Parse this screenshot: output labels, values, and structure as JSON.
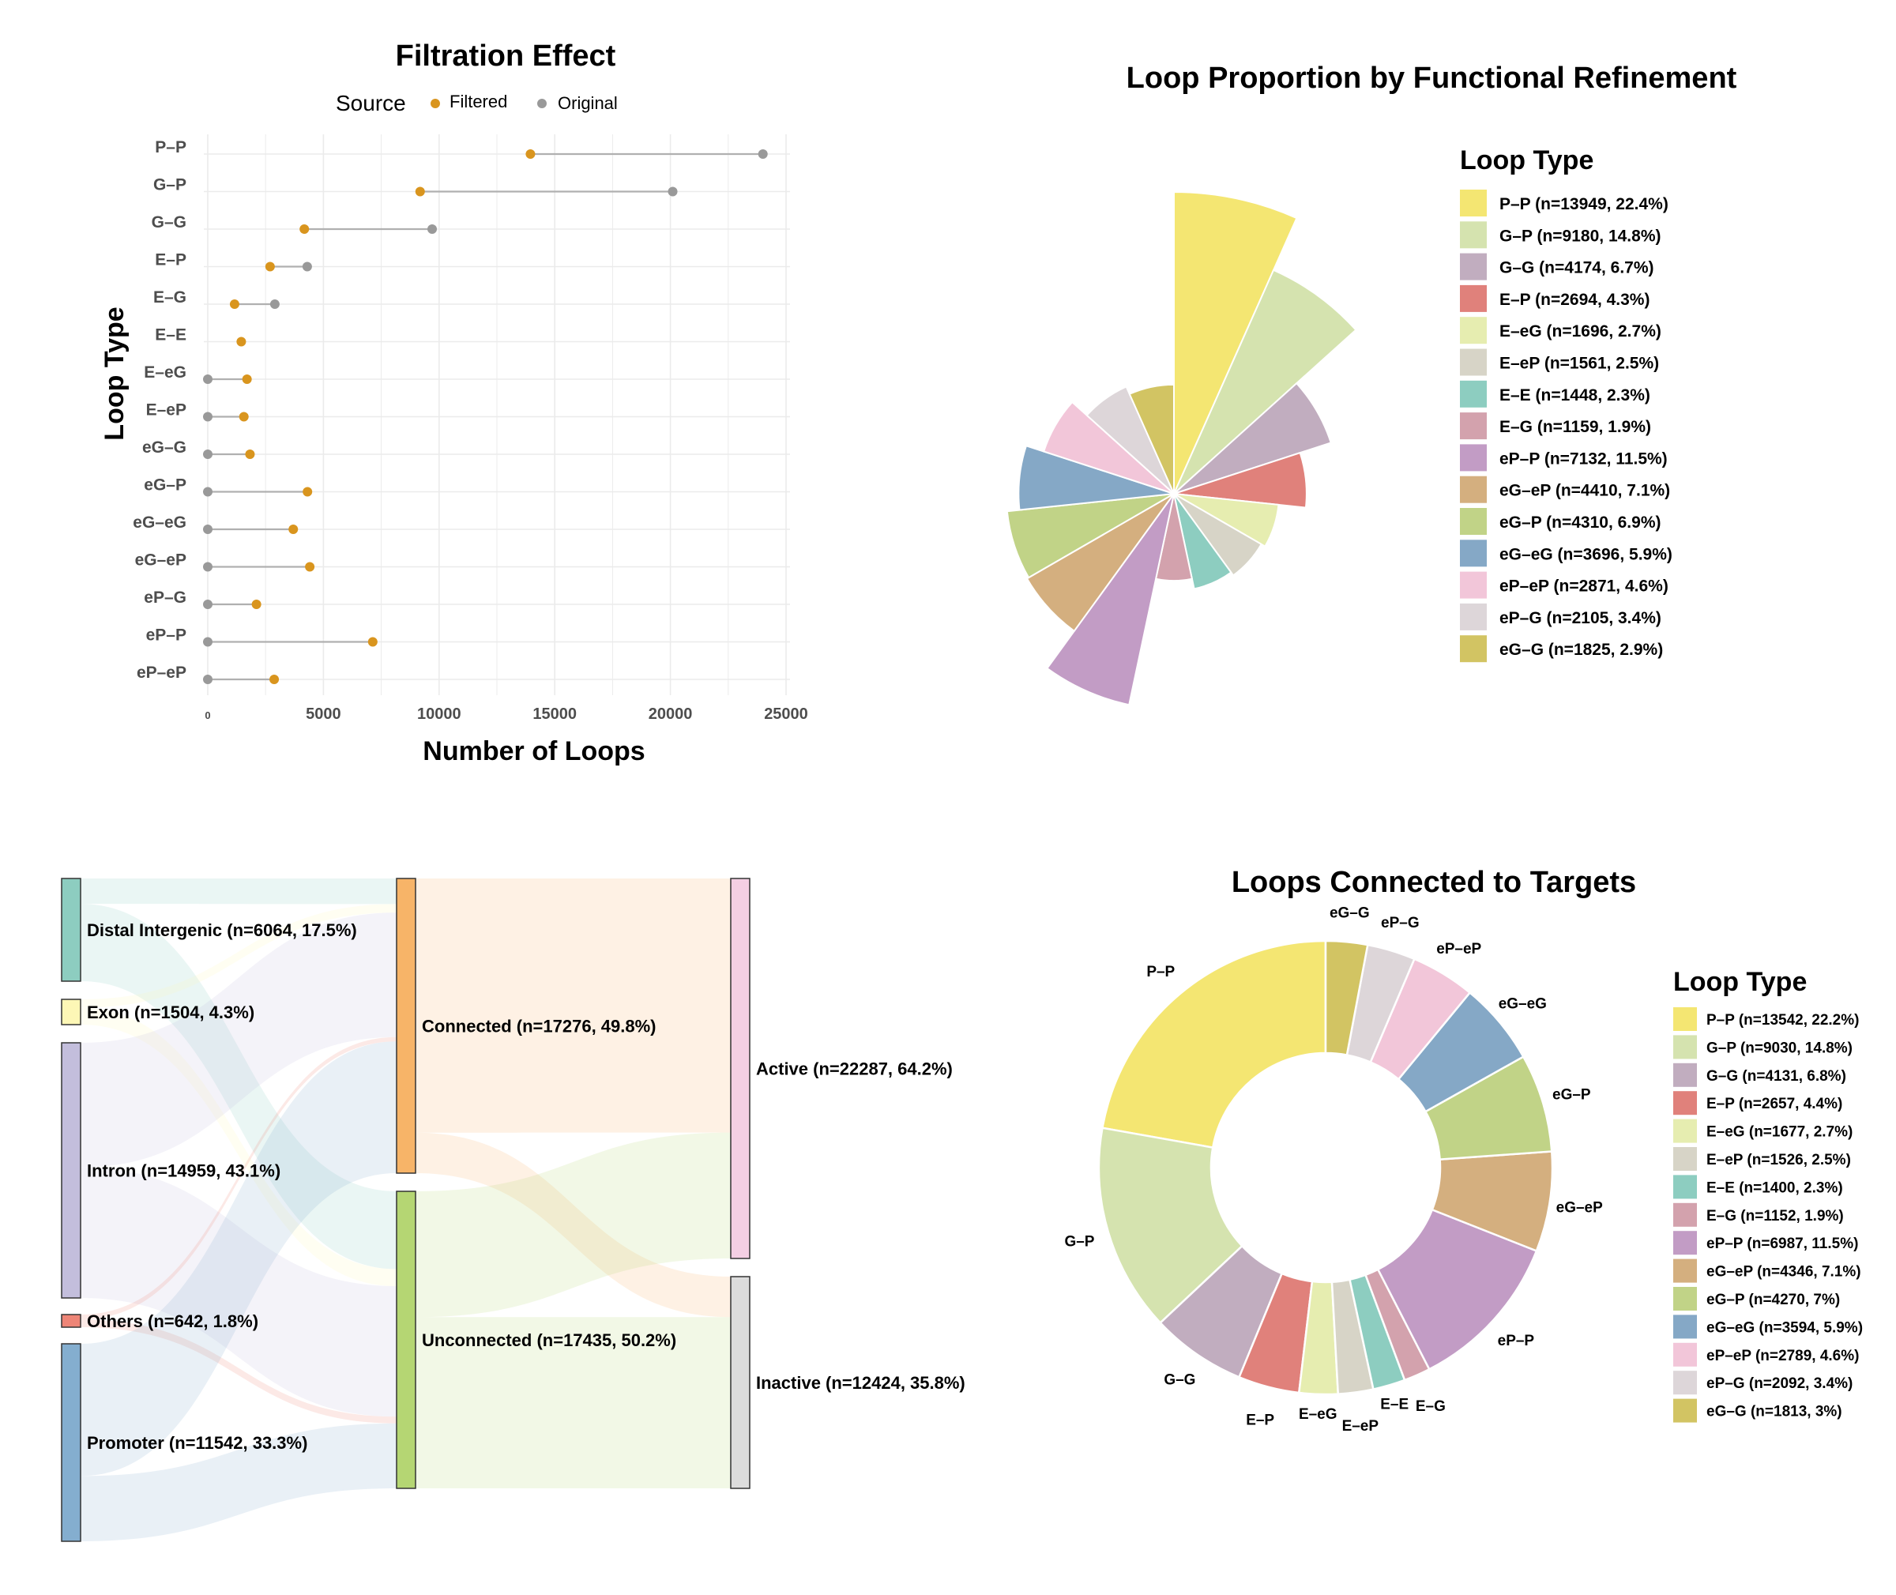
{
  "colors": {
    "filtered": "#D9951E",
    "original": "#999999",
    "connector": "#B0B0B0",
    "grid": "#EBEBEB",
    "loop_palette": [
      "#F4E672",
      "#D5E3AF",
      "#C1ADBF",
      "#E0817B",
      "#E6EDB0",
      "#D7D4C7",
      "#8DCDC0",
      "#D3A2AD",
      "#C29CC5",
      "#D4AF7F",
      "#C1D387",
      "#85A8C6",
      "#F2C6D9",
      "#DDD6D9",
      "#D2C463"
    ]
  },
  "lollipop": {
    "title": "Filtration Effect",
    "legend_title": "Source",
    "legend_items": [
      "Filtered",
      "Original"
    ],
    "xlabel": "Number of Loops",
    "ylabel": "Loop Type",
    "xticks": [
      "0",
      "5000",
      "10000",
      "15000",
      "20000",
      "25000"
    ]
  },
  "rose": {
    "title": "Loop Proportion by Functional Refinement",
    "legend_title": "Loop Type",
    "legend_labels": [
      "P–P (n=13949, 22.4%)",
      "G–P (n=9180, 14.8%)",
      "G–G (n=4174, 6.7%)",
      "E–P (n=2694, 4.3%)",
      "E–eG (n=1696, 2.7%)",
      "E–eP (n=1561, 2.5%)",
      "E–E (n=1448, 2.3%)",
      "E–G (n=1159, 1.9%)",
      "eP–P (n=7132, 11.5%)",
      "eG–eP (n=4410, 7.1%)",
      "eG–P (n=4310, 6.9%)",
      "eG–eG (n=3696, 5.9%)",
      "eP–eP (n=2871, 4.6%)",
      "eP–G (n=2105, 3.4%)",
      "eG–G (n=1825, 2.9%)"
    ]
  },
  "sankey": {
    "nodes": [
      {
        "label": "Distal Intergenic (n=6064, 17.5%)",
        "color": "#8DCDC0"
      },
      {
        "label": "Exon (n=1504, 4.3%)",
        "color": "#FDF7B6"
      },
      {
        "label": "Intron (n=14959, 43.1%)",
        "color": "#C3BEDC"
      },
      {
        "label": "Others (n=642, 1.8%)",
        "color": "#EE8577"
      },
      {
        "label": "Promoter (n=11542, 33.3%)",
        "color": "#84AECF"
      },
      {
        "label": "Connected (n=17276, 49.8%)",
        "color": "#F7B468"
      },
      {
        "label": "Unconnected (n=17435, 50.2%)",
        "color": "#B5D673"
      },
      {
        "label": "Active (n=22287, 64.2%)",
        "color": "#F4CFE3"
      },
      {
        "label": "Inactive (n=12424, 35.8%)",
        "color": "#DCDCDC"
      }
    ]
  },
  "donut": {
    "title": "Loops Connected to Targets",
    "legend_title": "Loop Type",
    "legend_labels": [
      "P–P (n=13542, 22.2%)",
      "G–P (n=9030, 14.8%)",
      "G–G (n=4131, 6.8%)",
      "E–P (n=2657, 4.4%)",
      "E–eG (n=1677, 2.7%)",
      "E–eP (n=1526, 2.5%)",
      "E–E (n=1400, 2.3%)",
      "E–G (n=1152, 1.9%)",
      "eP–P (n=6987, 11.5%)",
      "eG–eP (n=4346, 7.1%)",
      "eG–P (n=4270, 7%)",
      "eG–eG (n=3594, 5.9%)",
      "eP–eP (n=2789, 4.6%)",
      "eP–G (n=2092, 3.4%)",
      "eG–G (n=1813, 3%)"
    ]
  },
  "chart_data": [
    {
      "type": "scatter",
      "subtype": "dumbbell",
      "title": "Filtration Effect",
      "xlabel": "Number of Loops",
      "ylabel": "Loop Type",
      "xlim": [
        0,
        25000
      ],
      "legend": {
        "title": "Source",
        "position": "top"
      },
      "categories": [
        "P–P",
        "G–P",
        "G–G",
        "E–P",
        "E–G",
        "E–E",
        "E–eG",
        "E–eP",
        "eG–G",
        "eG–P",
        "eG–eG",
        "eG–eP",
        "eP–G",
        "eP–P",
        "eP–eP"
      ],
      "series": [
        {
          "name": "Filtered",
          "values": [
            13949,
            9180,
            4174,
            2694,
            1159,
            1448,
            1696,
            1561,
            1825,
            4310,
            3696,
            4410,
            2105,
            7132,
            2871
          ]
        },
        {
          "name": "Original",
          "values": [
            24000,
            20100,
            9700,
            4300,
            2900,
            null,
            0,
            0,
            0,
            0,
            0,
            0,
            0,
            0,
            0
          ]
        }
      ]
    },
    {
      "type": "pie",
      "subtype": "rose",
      "title": "Loop Proportion by Functional Refinement",
      "legend": {
        "title": "Loop Type",
        "position": "right"
      },
      "categories": [
        "P–P",
        "G–P",
        "G–G",
        "E–P",
        "E–eG",
        "E–eP",
        "E–E",
        "E–G",
        "eP–P",
        "eG–eP",
        "eG–P",
        "eG–eG",
        "eP–eP",
        "eP–G",
        "eG–G"
      ],
      "values": [
        13949,
        9180,
        4174,
        2694,
        1696,
        1561,
        1448,
        1159,
        7132,
        4410,
        4310,
        3696,
        2871,
        2105,
        1825
      ],
      "percent": [
        22.4,
        14.8,
        6.7,
        4.3,
        2.7,
        2.5,
        2.3,
        1.9,
        11.5,
        7.1,
        6.9,
        5.9,
        4.6,
        3.4,
        2.9
      ]
    },
    {
      "type": "sankey",
      "nodes": [
        "Distal Intergenic",
        "Exon",
        "Intron",
        "Others",
        "Promoter",
        "Connected",
        "Unconnected",
        "Active",
        "Inactive"
      ],
      "values": [
        6064,
        1504,
        14959,
        642,
        11542,
        17276,
        17435,
        22287,
        12424
      ],
      "percent": [
        17.5,
        4.3,
        43.1,
        1.8,
        33.3,
        49.8,
        50.2,
        64.2,
        35.8
      ],
      "links": [
        {
          "source": "Distal Intergenic",
          "target": "Connected",
          "value": 1500
        },
        {
          "source": "Distal Intergenic",
          "target": "Unconnected",
          "value": 4564
        },
        {
          "source": "Exon",
          "target": "Connected",
          "value": 500
        },
        {
          "source": "Exon",
          "target": "Unconnected",
          "value": 1004
        },
        {
          "source": "Intron",
          "target": "Connected",
          "value": 7300
        },
        {
          "source": "Intron",
          "target": "Unconnected",
          "value": 7659
        },
        {
          "source": "Others",
          "target": "Connected",
          "value": 250
        },
        {
          "source": "Others",
          "target": "Unconnected",
          "value": 392
        },
        {
          "source": "Promoter",
          "target": "Connected",
          "value": 7726
        },
        {
          "source": "Promoter",
          "target": "Unconnected",
          "value": 3816
        },
        {
          "source": "Connected",
          "target": "Active",
          "value": 14901
        },
        {
          "source": "Connected",
          "target": "Inactive",
          "value": 2375
        },
        {
          "source": "Unconnected",
          "target": "Active",
          "value": 7386
        },
        {
          "source": "Unconnected",
          "target": "Inactive",
          "value": 10049
        }
      ]
    },
    {
      "type": "pie",
      "subtype": "donut",
      "title": "Loops Connected to Targets",
      "legend": {
        "title": "Loop Type",
        "position": "right"
      },
      "categories": [
        "P–P",
        "G–P",
        "G–G",
        "E–P",
        "E–eG",
        "E–eP",
        "E–E",
        "E–G",
        "eP–P",
        "eG–eP",
        "eG–P",
        "eG–eG",
        "eP–eP",
        "eP–G",
        "eG–G"
      ],
      "values": [
        13542,
        9030,
        4131,
        2657,
        1677,
        1526,
        1400,
        1152,
        6987,
        4346,
        4270,
        3594,
        2789,
        2092,
        1813
      ],
      "percent": [
        22.2,
        14.8,
        6.8,
        4.4,
        2.7,
        2.5,
        2.3,
        1.9,
        11.5,
        7.1,
        7,
        5.9,
        4.6,
        3.4,
        3
      ]
    }
  ]
}
